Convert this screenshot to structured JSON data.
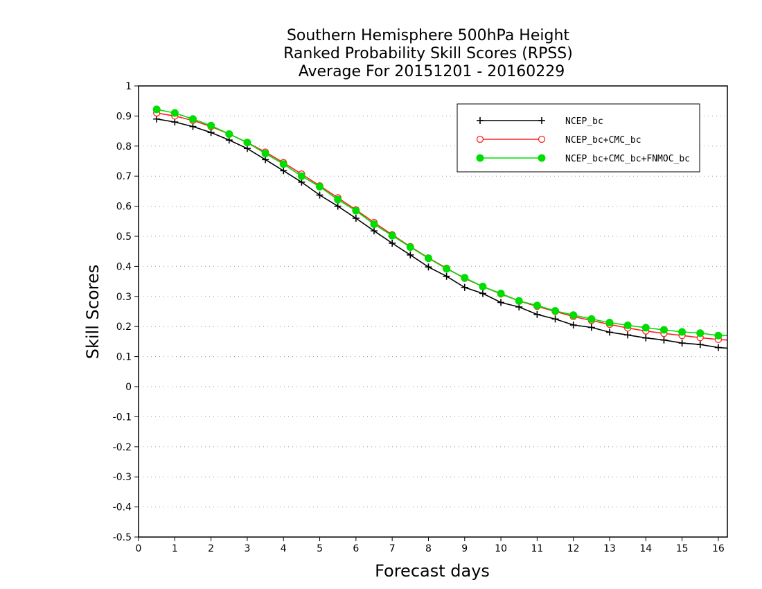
{
  "chart_data": {
    "type": "line",
    "title_lines": [
      "Southern Hemisphere 500hPa Height",
      "Ranked Probability Skill Scores (RPSS)",
      "Average For 20151201 - 20160229"
    ],
    "xlabel": "Forecast days",
    "ylabel": "Skill Scores",
    "xlim": [
      0,
      16.25
    ],
    "ylim": [
      -0.5,
      1
    ],
    "x_ticks": [
      0,
      1,
      2,
      3,
      4,
      5,
      6,
      7,
      8,
      9,
      10,
      11,
      12,
      13,
      14,
      15,
      16
    ],
    "y_ticks": [
      -0.5,
      -0.4,
      -0.3,
      -0.2,
      -0.1,
      0,
      0.1,
      0.2,
      0.3,
      0.4,
      0.5,
      0.6,
      0.7,
      0.8,
      0.9,
      1
    ],
    "grid": "horizontal-dotted",
    "legend_position": "top-right",
    "x": [
      0.5,
      1,
      1.5,
      2,
      2.5,
      3,
      3.5,
      4,
      4.5,
      5,
      5.5,
      6,
      6.5,
      7,
      7.5,
      8,
      8.5,
      9,
      9.5,
      10,
      10.5,
      11,
      11.5,
      12,
      12.5,
      13,
      13.5,
      14,
      14.5,
      15,
      15.5,
      16,
      16.25
    ],
    "series": [
      {
        "name": "NCEP_bc",
        "color": "#000000",
        "marker": "plus",
        "values": [
          0.89,
          0.88,
          0.865,
          0.845,
          0.82,
          0.792,
          0.755,
          0.718,
          0.68,
          0.637,
          0.6,
          0.56,
          0.518,
          0.477,
          0.438,
          0.398,
          0.367,
          0.33,
          0.31,
          0.28,
          0.265,
          0.24,
          0.225,
          0.205,
          0.197,
          0.181,
          0.172,
          0.162,
          0.155,
          0.145,
          0.14,
          0.13,
          0.128
        ]
      },
      {
        "name": "NCEP_bc+CMC_bc",
        "color": "#ff2020",
        "marker": "open-circle",
        "values": [
          0.91,
          0.9,
          0.885,
          0.865,
          0.84,
          0.812,
          0.78,
          0.745,
          0.707,
          0.668,
          0.628,
          0.588,
          0.546,
          0.505,
          0.466,
          0.428,
          0.394,
          0.36,
          0.333,
          0.308,
          0.285,
          0.267,
          0.25,
          0.233,
          0.22,
          0.207,
          0.195,
          0.185,
          0.177,
          0.17,
          0.163,
          0.157,
          0.155
        ]
      },
      {
        "name": "NCEP_bc+CMC_bc+FNMOC_bc",
        "color": "#00dd00",
        "marker": "filled-circle",
        "values": [
          0.922,
          0.91,
          0.89,
          0.868,
          0.84,
          0.812,
          0.775,
          0.74,
          0.7,
          0.665,
          0.622,
          0.585,
          0.54,
          0.502,
          0.464,
          0.427,
          0.392,
          0.362,
          0.333,
          0.31,
          0.285,
          0.27,
          0.252,
          0.238,
          0.225,
          0.213,
          0.204,
          0.196,
          0.189,
          0.182,
          0.178,
          0.17,
          0.17
        ]
      }
    ]
  }
}
